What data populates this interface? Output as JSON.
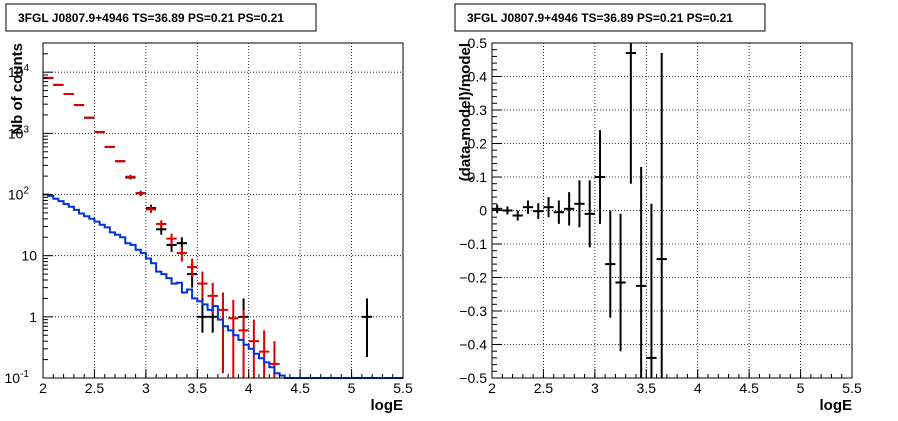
{
  "chart_data": [
    {
      "type": "scatter",
      "title": "3FGL J0807.9+4946 TS=36.89 PS=0.21 PS=0.21",
      "xlabel": "logE",
      "ylabel": "Nb of counts",
      "xlim": [
        2,
        5.5
      ],
      "ylim": [
        0.1,
        30000
      ],
      "yscale": "log",
      "grid": true,
      "xticks": [
        "2",
        "2.5",
        "3",
        "3.5",
        "4",
        "4.5",
        "5",
        "5.5"
      ],
      "yticks": [
        {
          "value": 0.1,
          "base": "10",
          "exp": "-1"
        },
        {
          "value": 1,
          "base": "1",
          "exp": ""
        },
        {
          "value": 10,
          "base": "10",
          "exp": ""
        },
        {
          "value": 100,
          "base": "10",
          "exp": "2"
        },
        {
          "value": 1000,
          "base": "10",
          "exp": "3"
        },
        {
          "value": 10000,
          "base": "10",
          "exp": "4"
        }
      ],
      "series": [
        {
          "kind": "points",
          "color": "#000000",
          "points": [
            {
              "x": 2.05,
              "y": 8000,
              "lo": 7900,
              "hi": 8100
            },
            {
              "x": 2.15,
              "y": 6200,
              "lo": 6100,
              "hi": 6300
            },
            {
              "x": 2.25,
              "y": 4400,
              "lo": 4300,
              "hi": 4500
            },
            {
              "x": 2.35,
              "y": 2900,
              "lo": 2850,
              "hi": 2950
            },
            {
              "x": 2.45,
              "y": 1800,
              "lo": 1760,
              "hi": 1840
            },
            {
              "x": 2.55,
              "y": 1050,
              "lo": 1020,
              "hi": 1080
            },
            {
              "x": 2.65,
              "y": 600,
              "lo": 580,
              "hi": 620
            },
            {
              "x": 2.75,
              "y": 350,
              "lo": 335,
              "hi": 365
            },
            {
              "x": 2.85,
              "y": 190,
              "lo": 176,
              "hi": 204
            },
            {
              "x": 2.95,
              "y": 105,
              "lo": 95,
              "hi": 115
            },
            {
              "x": 3.05,
              "y": 60,
              "lo": 52,
              "hi": 68
            },
            {
              "x": 3.15,
              "y": 27,
              "lo": 22,
              "hi": 33
            },
            {
              "x": 3.25,
              "y": 15,
              "lo": 11.5,
              "hi": 19
            },
            {
              "x": 3.35,
              "y": 16,
              "lo": 12.5,
              "hi": 20
            },
            {
              "x": 3.45,
              "y": 5,
              "lo": 3,
              "hi": 7.5
            },
            {
              "x": 3.55,
              "y": 1,
              "lo": 0.55,
              "hi": 2
            },
            {
              "x": 3.65,
              "y": 1,
              "lo": 0.55,
              "hi": 2
            },
            {
              "x": 3.95,
              "y": 1,
              "lo": 0.55,
              "hi": 2
            },
            {
              "x": 5.15,
              "y": 1,
              "lo": 0.22,
              "hi": 2
            }
          ]
        },
        {
          "kind": "points",
          "color": "#dd0000",
          "points": [
            {
              "x": 2.05,
              "y": 8100,
              "lo": 8000,
              "hi": 8200
            },
            {
              "x": 2.15,
              "y": 6200,
              "lo": 6100,
              "hi": 6300
            },
            {
              "x": 2.25,
              "y": 4400,
              "lo": 4300,
              "hi": 4500
            },
            {
              "x": 2.35,
              "y": 2900,
              "lo": 2850,
              "hi": 2950
            },
            {
              "x": 2.45,
              "y": 1800,
              "lo": 1760,
              "hi": 1840
            },
            {
              "x": 2.55,
              "y": 1050,
              "lo": 1020,
              "hi": 1080
            },
            {
              "x": 2.65,
              "y": 600,
              "lo": 580,
              "hi": 620
            },
            {
              "x": 2.75,
              "y": 350,
              "lo": 335,
              "hi": 365
            },
            {
              "x": 2.85,
              "y": 195,
              "lo": 180,
              "hi": 210
            },
            {
              "x": 2.95,
              "y": 105,
              "lo": 96,
              "hi": 114
            },
            {
              "x": 3.05,
              "y": 57,
              "lo": 50,
              "hi": 64
            },
            {
              "x": 3.15,
              "y": 33,
              "lo": 28,
              "hi": 38
            },
            {
              "x": 3.25,
              "y": 19,
              "lo": 15,
              "hi": 23
            },
            {
              "x": 3.35,
              "y": 11,
              "lo": 8,
              "hi": 14
            },
            {
              "x": 3.45,
              "y": 6.5,
              "lo": 4.5,
              "hi": 9
            },
            {
              "x": 3.55,
              "y": 3.5,
              "lo": 2,
              "hi": 5.5
            },
            {
              "x": 3.65,
              "y": 2.2,
              "lo": 1.1,
              "hi": 3.6
            },
            {
              "x": 3.75,
              "y": 1.3,
              "lo": 0.12,
              "hi": 2.5
            },
            {
              "x": 3.85,
              "y": 0.95,
              "lo": 0.1,
              "hi": 1.9
            },
            {
              "x": 3.95,
              "y": 0.6,
              "lo": 0.1,
              "hi": 1.3
            },
            {
              "x": 4.05,
              "y": 0.4,
              "lo": 0.1,
              "hi": 0.9
            },
            {
              "x": 4.15,
              "y": 0.27,
              "lo": 0.1,
              "hi": 0.6
            },
            {
              "x": 4.25,
              "y": 0.17,
              "lo": 0.1,
              "hi": 0.4
            }
          ]
        },
        {
          "kind": "step",
          "color": "#0033dd",
          "edges": [
            2.0,
            2.05,
            2.1,
            2.15,
            2.2,
            2.25,
            2.3,
            2.35,
            2.4,
            2.45,
            2.5,
            2.55,
            2.6,
            2.65,
            2.7,
            2.75,
            2.8,
            2.85,
            2.9,
            2.95,
            3.0,
            3.05,
            3.1,
            3.15,
            3.2,
            3.25,
            3.3,
            3.35,
            3.4,
            3.45,
            3.5,
            3.55,
            3.6,
            3.65,
            3.7,
            3.75,
            3.8,
            3.85,
            3.9,
            3.95,
            4.0,
            4.05,
            4.1,
            4.15,
            4.2,
            4.25,
            4.3,
            4.35,
            5.5
          ],
          "values": [
            100,
            95,
            85,
            78,
            70,
            63,
            56,
            49,
            44,
            40,
            36,
            32,
            29,
            24,
            22,
            20,
            16,
            15,
            12.5,
            11,
            9,
            7.5,
            5.5,
            5,
            4.3,
            3.5,
            3.6,
            2.5,
            2.8,
            2,
            1.8,
            1.6,
            1.3,
            1.5,
            0.9,
            0.7,
            0.6,
            0.5,
            0.42,
            0.35,
            0.3,
            0.25,
            0.21,
            0.18,
            0.15,
            0.12,
            0.11,
            0.1
          ]
        }
      ]
    },
    {
      "type": "scatter",
      "title": "3FGL J0807.9+4946 TS=36.89 PS=0.21 PS=0.21",
      "xlabel": "logE",
      "ylabel": "(data-model)/model",
      "xlim": [
        2,
        5.5
      ],
      "ylim": [
        -0.5,
        0.5
      ],
      "grid": true,
      "xticks": [
        "2",
        "2.5",
        "3",
        "3.5",
        "4",
        "4.5",
        "5",
        "5.5"
      ],
      "yticks": [
        "-0.5",
        "-0.4",
        "-0.3",
        "-0.2",
        "-0.1",
        "0",
        "0.1",
        "0.2",
        "0.3",
        "0.4",
        "0.5"
      ],
      "series": [
        {
          "kind": "points",
          "color": "#000000",
          "points": [
            {
              "x": 2.05,
              "y": 0.005,
              "lo": -0.008,
              "hi": 0.018
            },
            {
              "x": 2.15,
              "y": 0.0,
              "lo": -0.012,
              "hi": 0.012
            },
            {
              "x": 2.25,
              "y": -0.015,
              "lo": -0.03,
              "hi": 0.0
            },
            {
              "x": 2.35,
              "y": 0.01,
              "lo": -0.01,
              "hi": 0.03
            },
            {
              "x": 2.45,
              "y": -0.002,
              "lo": -0.025,
              "hi": 0.022
            },
            {
              "x": 2.55,
              "y": 0.01,
              "lo": -0.02,
              "hi": 0.04
            },
            {
              "x": 2.65,
              "y": -0.005,
              "lo": -0.04,
              "hi": 0.03
            },
            {
              "x": 2.75,
              "y": 0.005,
              "lo": -0.045,
              "hi": 0.055
            },
            {
              "x": 2.85,
              "y": 0.02,
              "lo": -0.05,
              "hi": 0.09
            },
            {
              "x": 2.95,
              "y": -0.01,
              "lo": -0.11,
              "hi": 0.09
            },
            {
              "x": 3.05,
              "y": 0.1,
              "lo": -0.04,
              "hi": 0.24
            },
            {
              "x": 3.15,
              "y": -0.16,
              "lo": -0.32,
              "hi": 0.0
            },
            {
              "x": 3.25,
              "y": -0.215,
              "lo": -0.42,
              "hi": -0.01
            },
            {
              "x": 3.35,
              "y": 0.47,
              "lo": 0.08,
              "hi": 0.5
            },
            {
              "x": 3.45,
              "y": -0.225,
              "lo": -0.5,
              "hi": 0.13
            },
            {
              "x": 3.55,
              "y": -0.44,
              "lo": -0.5,
              "hi": 0.02
            },
            {
              "x": 3.65,
              "y": -0.145,
              "lo": -0.5,
              "hi": 0.47
            }
          ]
        }
      ]
    }
  ]
}
